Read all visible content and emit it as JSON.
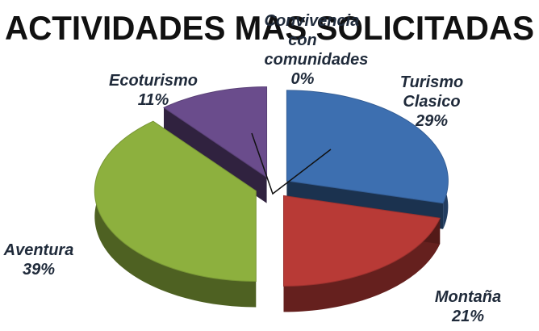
{
  "chart_data": {
    "type": "pie",
    "title": "ACTIVIDADES MAS SOLICITADAS",
    "categories": [
      "Turismo Clasico",
      "Montaña",
      "Aventura",
      "Ecoturismo",
      "Convivencia con comunidades"
    ],
    "values": [
      29,
      21,
      39,
      11,
      0
    ],
    "value_labels": [
      "29%",
      "21%",
      "39%",
      "11%",
      "0%"
    ],
    "colors": [
      "#3d6fb0",
      "#b83a36",
      "#8db03e",
      "#6a4c8c",
      "#d07a2c"
    ]
  }
}
